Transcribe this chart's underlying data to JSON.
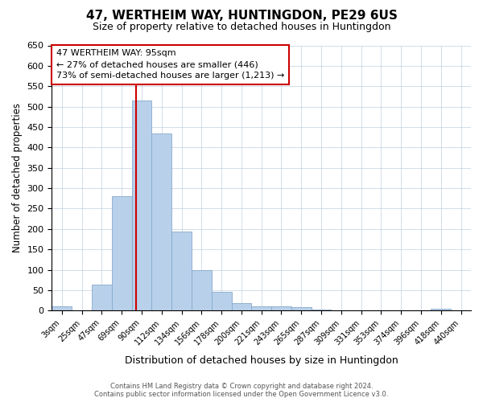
{
  "title": "47, WERTHEIM WAY, HUNTINGDON, PE29 6US",
  "subtitle": "Size of property relative to detached houses in Huntingdon",
  "xlabel": "Distribution of detached houses by size in Huntingdon",
  "ylabel": "Number of detached properties",
  "categories": [
    "3sqm",
    "25sqm",
    "47sqm",
    "69sqm",
    "90sqm",
    "112sqm",
    "134sqm",
    "156sqm",
    "178sqm",
    "200sqm",
    "221sqm",
    "243sqm",
    "265sqm",
    "287sqm",
    "309sqm",
    "331sqm",
    "353sqm",
    "374sqm",
    "396sqm",
    "418sqm",
    "440sqm"
  ],
  "values": [
    10,
    0,
    63,
    280,
    515,
    435,
    193,
    100,
    45,
    18,
    10,
    10,
    8,
    3,
    0,
    0,
    0,
    0,
    0,
    5,
    0
  ],
  "bar_color": "#b8d0ea",
  "bar_edgecolor": "#88aacc",
  "ylim": [
    0,
    650
  ],
  "yticks": [
    0,
    50,
    100,
    150,
    200,
    250,
    300,
    350,
    400,
    450,
    500,
    550,
    600,
    650
  ],
  "property_line_color": "#cc0000",
  "annotation_line1": "47 WERTHEIM WAY: 95sqm",
  "annotation_line2": "← 27% of detached houses are smaller (446)",
  "annotation_line3": "73% of semi-detached houses are larger (1,213) →",
  "annotation_box_edgecolor": "#cc0000",
  "background_color": "#ffffff",
  "grid_color": "#c0d0e0",
  "footer_line1": "Contains HM Land Registry data © Crown copyright and database right 2024.",
  "footer_line2": "Contains public sector information licensed under the Open Government Licence v3.0."
}
